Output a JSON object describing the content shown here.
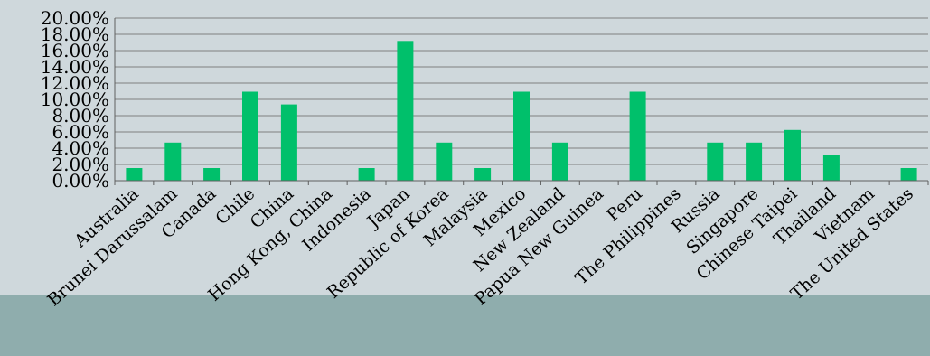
{
  "chart_data": {
    "type": "bar",
    "title": "",
    "categories": [
      "Australia",
      "Brunei Darussalam",
      "Canada",
      "Chile",
      "China",
      "Hong Kong, China",
      "Indonesia",
      "Japan",
      "Republic of Korea",
      "Malaysia",
      "Mexico",
      "New Zealand",
      "Papua New Guinea",
      "Peru",
      "The Philippines",
      "Russia",
      "Singapore",
      "Chinese Taipei",
      "Thailand",
      "Vietnam",
      "The United States"
    ],
    "values": [
      1.56,
      4.69,
      1.56,
      10.94,
      9.38,
      0,
      1.56,
      17.19,
      4.69,
      1.56,
      10.94,
      4.69,
      0,
      10.94,
      0,
      4.69,
      4.69,
      6.25,
      3.13,
      0,
      1.56
    ],
    "y_ticks": [
      "0.00%",
      "2.00%",
      "4.00%",
      "6.00%",
      "8.00%",
      "10.00%",
      "12.00%",
      "14.00%",
      "16.00%",
      "18.00%",
      "20.00%"
    ],
    "ylim": [
      0,
      20
    ],
    "xlabel": "",
    "ylabel": "",
    "grid": true,
    "legend": "none",
    "colors": {
      "bar": "#00c06b",
      "grid": "#7f7f7f",
      "axis": "#5f5f5f",
      "band": "#8fadad",
      "background": "#cfd8dc"
    }
  }
}
